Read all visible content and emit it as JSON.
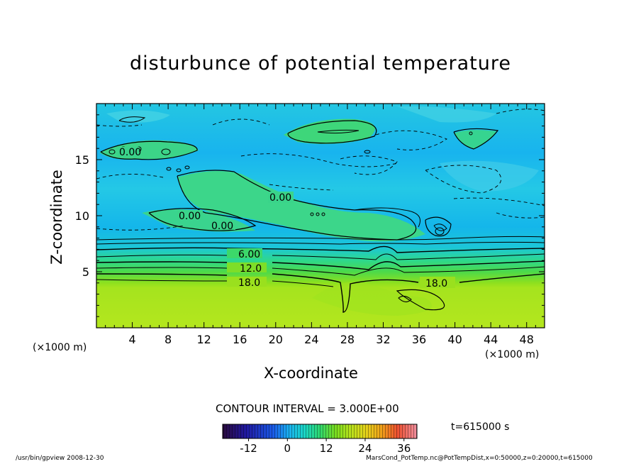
{
  "chart_data": {
    "type": "heatmap",
    "title": "disturbunce of potential temperature",
    "xlabel": "X-coordinate",
    "ylabel": "Z-coordinate",
    "x_unit_left": "(×1000 m)",
    "x_unit_right": "(×1000 m)",
    "xlim": [
      0,
      50
    ],
    "ylim": [
      0,
      20
    ],
    "x_ticks": [
      "4",
      "8",
      "12",
      "16",
      "20",
      "24",
      "28",
      "32",
      "36",
      "40",
      "44",
      "48"
    ],
    "y_ticks": [
      "5",
      "10",
      "15"
    ],
    "contour_interval_label": "CONTOUR INTERVAL = 3.000E+00",
    "contour_labels": [
      "0.00",
      "0.00",
      "0.00",
      "0.00",
      "6.00",
      "12.0",
      "18.0",
      "18.0"
    ],
    "colorbar": {
      "min": -20,
      "max": 40,
      "ticks": [
        "-12",
        "0",
        "12",
        "24",
        "36"
      ]
    },
    "time_label": "t=615000 s",
    "grid": false
  },
  "footer": {
    "left": "/usr/bin/gpview   2008-12-30",
    "right": "MarsCond_PotTemp.nc@PotTempDist,x=0:50000,z=0:20000,t=615000"
  }
}
